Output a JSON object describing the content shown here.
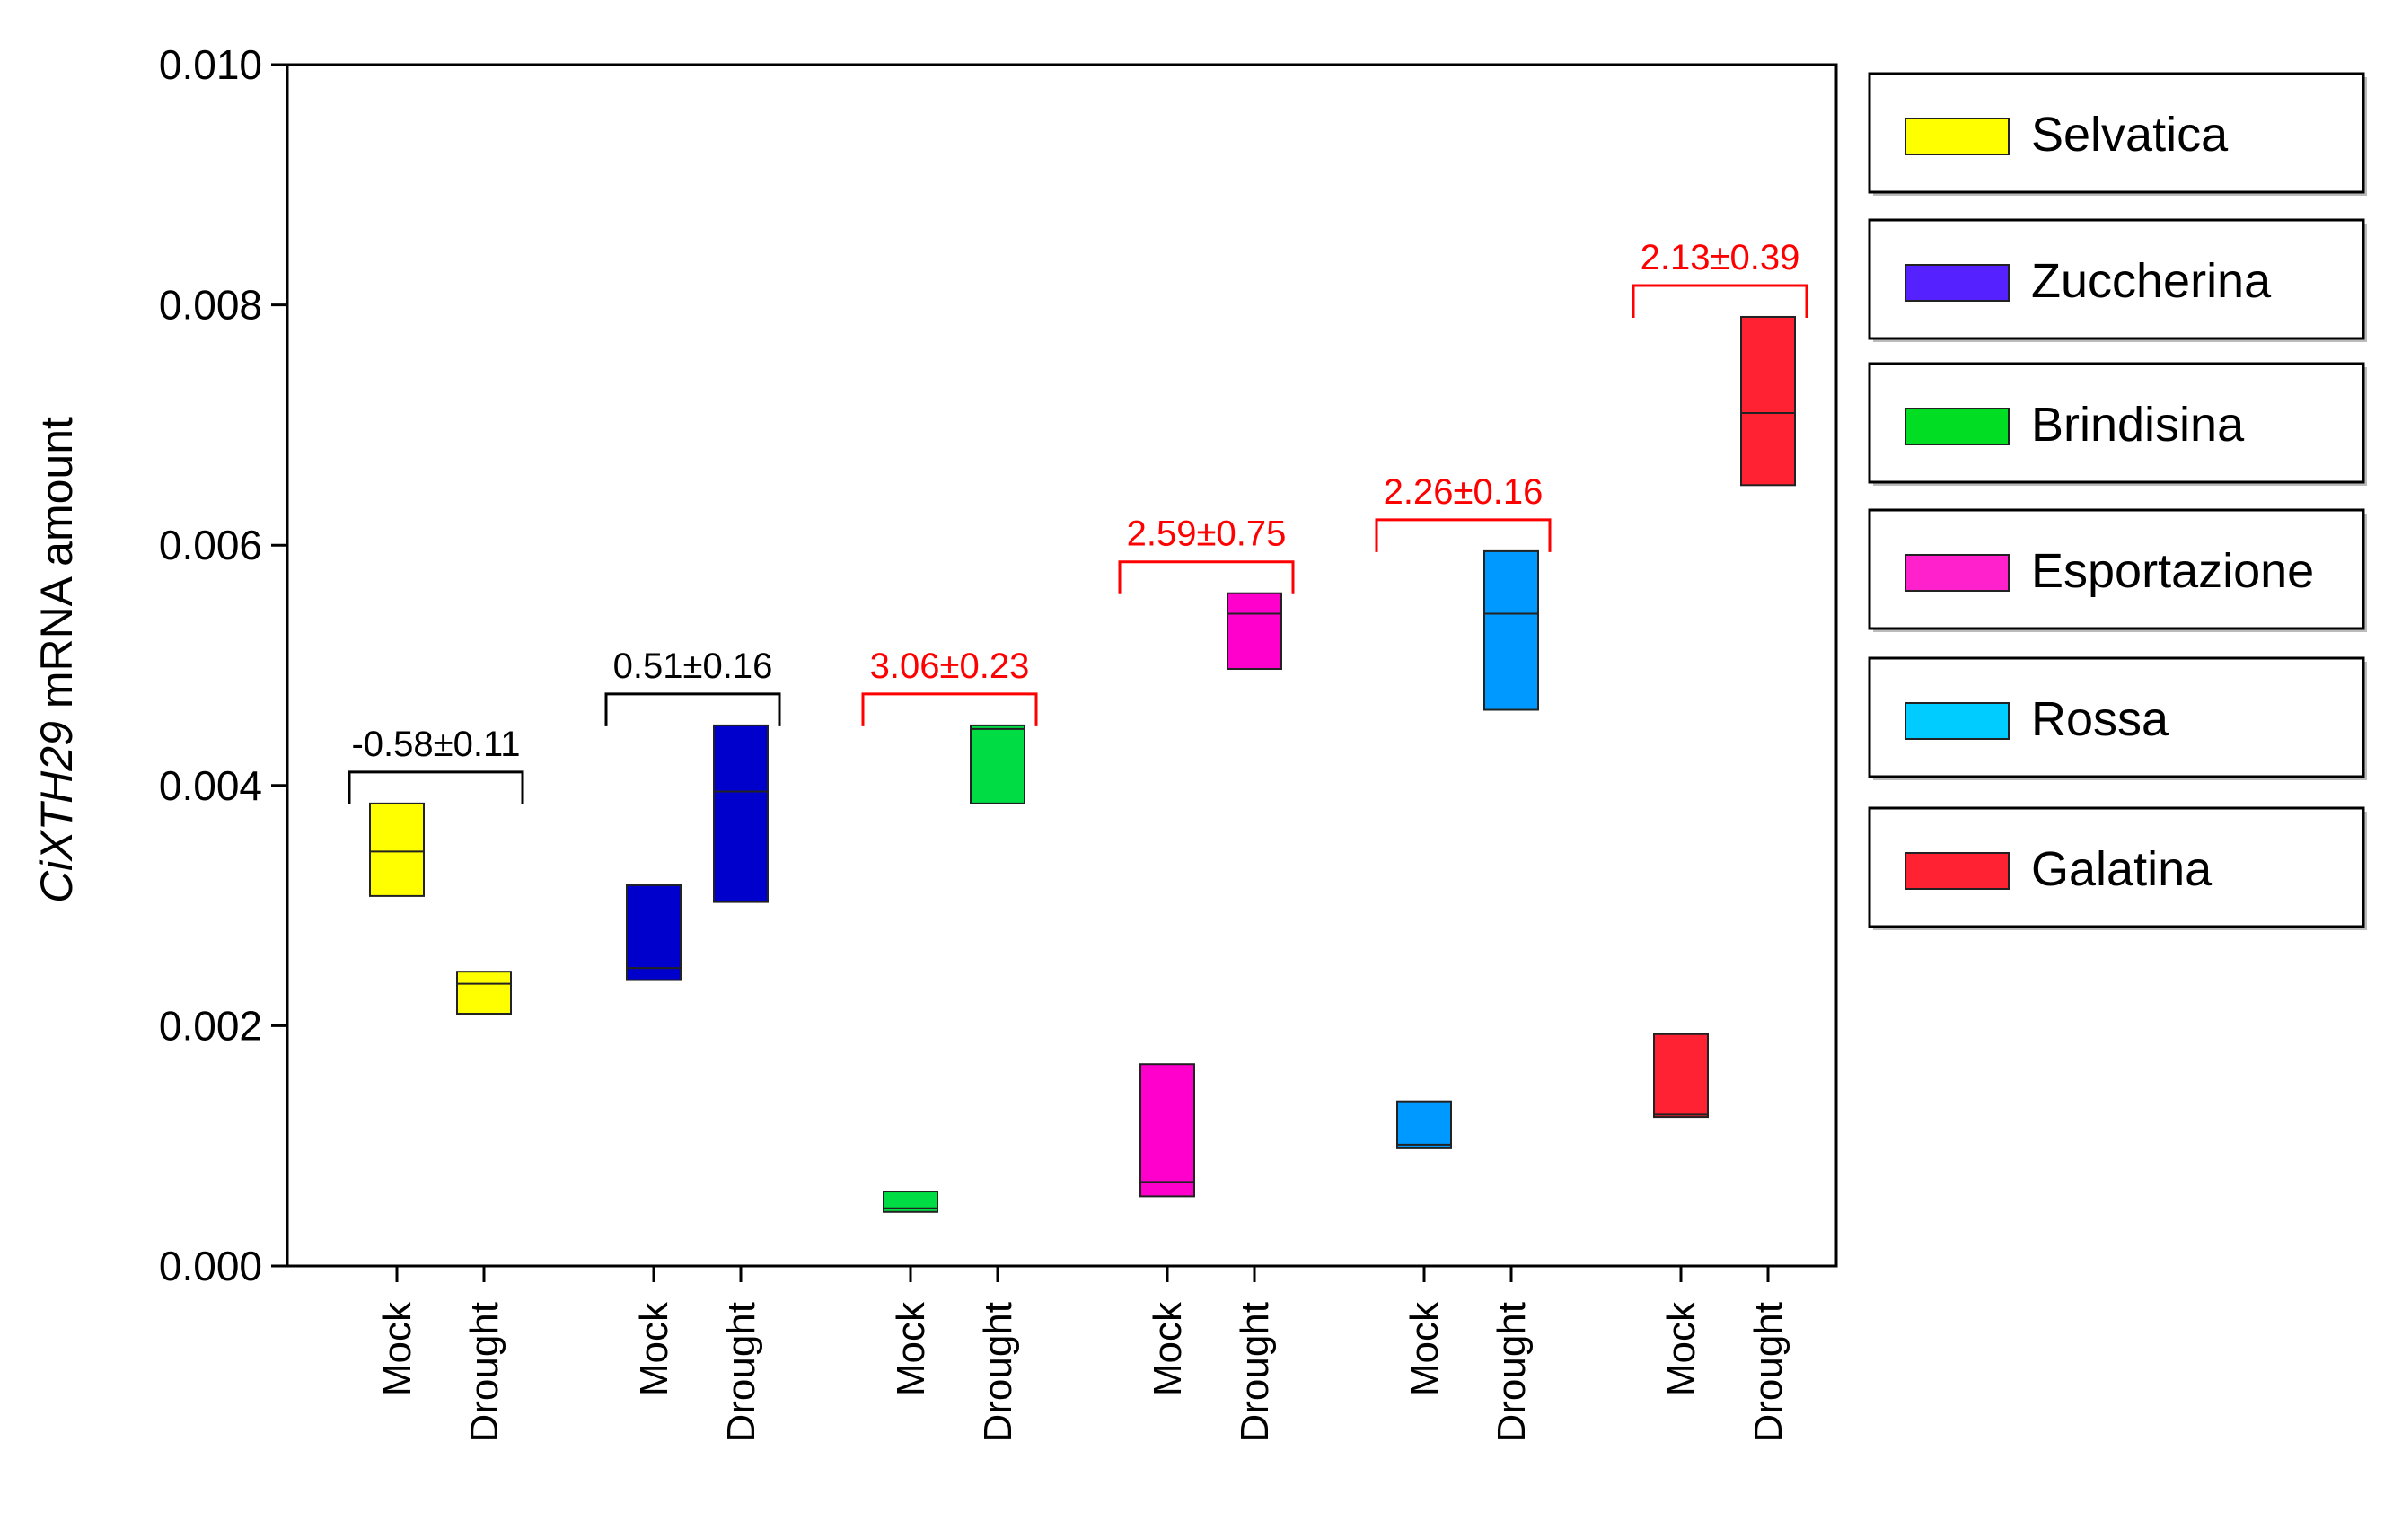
{
  "chart_data": {
    "type": "box",
    "ylabel_italic": "CiXTH29",
    "ylabel_rest": " mRNA amount",
    "ylim": [
      0,
      0.01
    ],
    "yticks": [
      "0.000",
      "0.002",
      "0.004",
      "0.006",
      "0.008",
      "0.010"
    ],
    "ytick_values": [
      0,
      0.002,
      0.004,
      0.006,
      0.008,
      0.01
    ],
    "grid": false,
    "legend_position": "right",
    "categories": [
      "Mock",
      "Drought"
    ],
    "series": [
      {
        "name": "Selvatica",
        "color": "#ffff00",
        "annotation": "-0.58±0.11",
        "annotation_color": "#000000",
        "mock": {
          "low": 0.00308,
          "mid": 0.00345,
          "high": 0.00385
        },
        "drought": {
          "low": 0.0021,
          "mid": 0.00235,
          "high": 0.00245
        }
      },
      {
        "name": "Zuccherina",
        "color": "#0000cc",
        "annotation": "0.51±0.16",
        "annotation_color": "#000000",
        "mock": {
          "low": 0.00238,
          "mid": 0.00248,
          "high": 0.00317
        },
        "drought": {
          "low": 0.00303,
          "mid": 0.00395,
          "high": 0.0045
        }
      },
      {
        "name": "Brindisina",
        "color": "#00dd44",
        "annotation": "3.06±0.23",
        "annotation_color": "#ff0000",
        "mock": {
          "low": 0.00045,
          "mid": 0.00048,
          "high": 0.00062
        },
        "drought": {
          "low": 0.00385,
          "mid": 0.00447,
          "high": 0.0045
        }
      },
      {
        "name": "Esportazione",
        "color": "#ff00cc",
        "annotation": "2.59±0.75",
        "annotation_color": "#ff0000",
        "mock": {
          "low": 0.00058,
          "mid": 0.0007,
          "high": 0.00168
        },
        "drought": {
          "low": 0.00497,
          "mid": 0.00543,
          "high": 0.0056
        }
      },
      {
        "name": "Rossa",
        "color": "#0099ff",
        "annotation": "2.26±0.16",
        "annotation_color": "#ff0000",
        "mock": {
          "low": 0.00098,
          "mid": 0.00101,
          "high": 0.00137
        },
        "drought": {
          "low": 0.00463,
          "mid": 0.00543,
          "high": 0.00595
        }
      },
      {
        "name": "Galatina",
        "color": "#ff2233",
        "annotation": "2.13±0.39",
        "annotation_color": "#ff0000",
        "mock": {
          "low": 0.00124,
          "mid": 0.00126,
          "high": 0.00193
        },
        "drought": {
          "low": 0.0065,
          "mid": 0.0071,
          "high": 0.0079
        }
      }
    ]
  },
  "legend_colors": [
    "#ffff00",
    "#5522ff",
    "#00dd22",
    "#ff22cc",
    "#00ccff",
    "#ff2233"
  ]
}
